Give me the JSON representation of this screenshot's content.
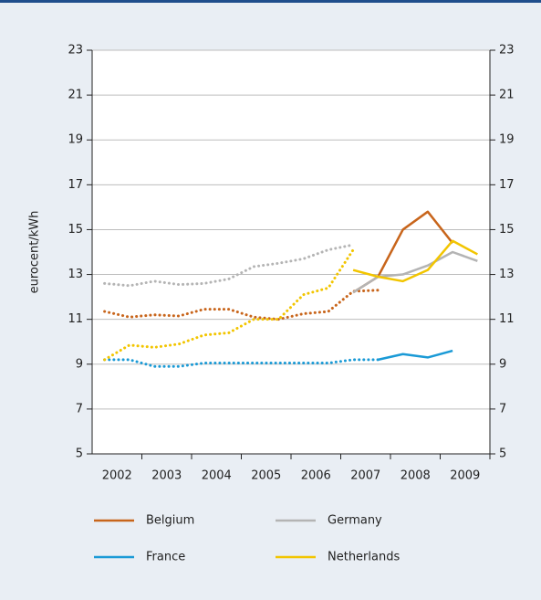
{
  "chart_data": {
    "type": "line",
    "y_label": "eurocent/kWh",
    "xlim": [
      2002,
      2010
    ],
    "xticks": [
      {
        "value": 2002.5,
        "label": "2002"
      },
      {
        "value": 2003.5,
        "label": "2003"
      },
      {
        "value": 2004.5,
        "label": "2004"
      },
      {
        "value": 2005.5,
        "label": "2005"
      },
      {
        "value": 2006.5,
        "label": "2006"
      },
      {
        "value": 2007.5,
        "label": "2007"
      },
      {
        "value": 2008.5,
        "label": "2008"
      },
      {
        "value": 2009.5,
        "label": "2009"
      }
    ],
    "ylim": [
      5,
      23
    ],
    "yticks": [
      5,
      7,
      9,
      11,
      13,
      15,
      17,
      19,
      21,
      23
    ],
    "y2lim": [
      5,
      23
    ],
    "y2ticks": [
      5,
      7,
      9,
      11,
      13,
      15,
      17,
      19,
      21,
      23
    ],
    "grid": true,
    "legend_position": "bottom",
    "series": [
      {
        "name": "Belgium",
        "color": "#c8651b",
        "segments": [
          {
            "style": "dotted",
            "x": [
              2002.25,
              2002.75,
              2003.25,
              2003.75,
              2004.25,
              2004.75,
              2005.25,
              2005.75,
              2006.25,
              2006.75,
              2007.25,
              2007.75
            ],
            "values": [
              11.35,
              11.1,
              11.2,
              11.15,
              11.45,
              11.45,
              11.1,
              11.0,
              11.25,
              11.35,
              12.25,
              12.3
            ]
          },
          {
            "style": "solid",
            "x": [
              2007.25,
              2007.75,
              2008.25,
              2008.75,
              2009.25
            ],
            "values": [
              12.2,
              12.9,
              15.0,
              15.8,
              14.4
            ]
          }
        ]
      },
      {
        "name": "Germany",
        "color": "#b4b4b4",
        "segments": [
          {
            "style": "dotted",
            "x": [
              2002.25,
              2002.75,
              2003.25,
              2003.75,
              2004.25,
              2004.75,
              2005.25,
              2005.75,
              2006.25,
              2006.75,
              2007.2
            ],
            "values": [
              12.6,
              12.5,
              12.7,
              12.55,
              12.6,
              12.8,
              13.35,
              13.5,
              13.7,
              14.1,
              14.3
            ]
          },
          {
            "style": "solid",
            "x": [
              2007.25,
              2007.75,
              2008.25,
              2008.75,
              2009.25,
              2009.75
            ],
            "values": [
              12.2,
              12.9,
              13.0,
              13.4,
              14.0,
              13.6
            ]
          }
        ]
      },
      {
        "name": "France",
        "color": "#1a9ad6",
        "segments": [
          {
            "style": "dotted",
            "x": [
              2002.25,
              2002.75,
              2003.25,
              2003.75,
              2004.25,
              2004.75,
              2005.25,
              2005.75,
              2006.25,
              2006.75,
              2007.25,
              2007.75
            ],
            "values": [
              9.2,
              9.2,
              8.9,
              8.9,
              9.05,
              9.05,
              9.05,
              9.05,
              9.05,
              9.05,
              9.2,
              9.2
            ]
          },
          {
            "style": "solid",
            "x": [
              2007.75,
              2008.25,
              2008.75,
              2009.25
            ],
            "values": [
              9.2,
              9.45,
              9.3,
              9.6
            ]
          }
        ]
      },
      {
        "name": "Netherlands",
        "color": "#f2c500",
        "segments": [
          {
            "style": "dotted",
            "x": [
              2002.25,
              2002.75,
              2003.25,
              2003.75,
              2004.25,
              2004.75,
              2005.25,
              2005.75,
              2006.25,
              2006.75,
              2007.25
            ],
            "values": [
              9.2,
              9.85,
              9.75,
              9.9,
              10.3,
              10.4,
              11.0,
              11.0,
              12.1,
              12.4,
              14.1
            ]
          },
          {
            "style": "solid",
            "x": [
              2007.25,
              2007.75,
              2008.25,
              2008.75,
              2009.25,
              2009.75
            ],
            "values": [
              13.2,
              12.9,
              12.7,
              13.2,
              14.5,
              13.9
            ]
          }
        ]
      }
    ]
  }
}
